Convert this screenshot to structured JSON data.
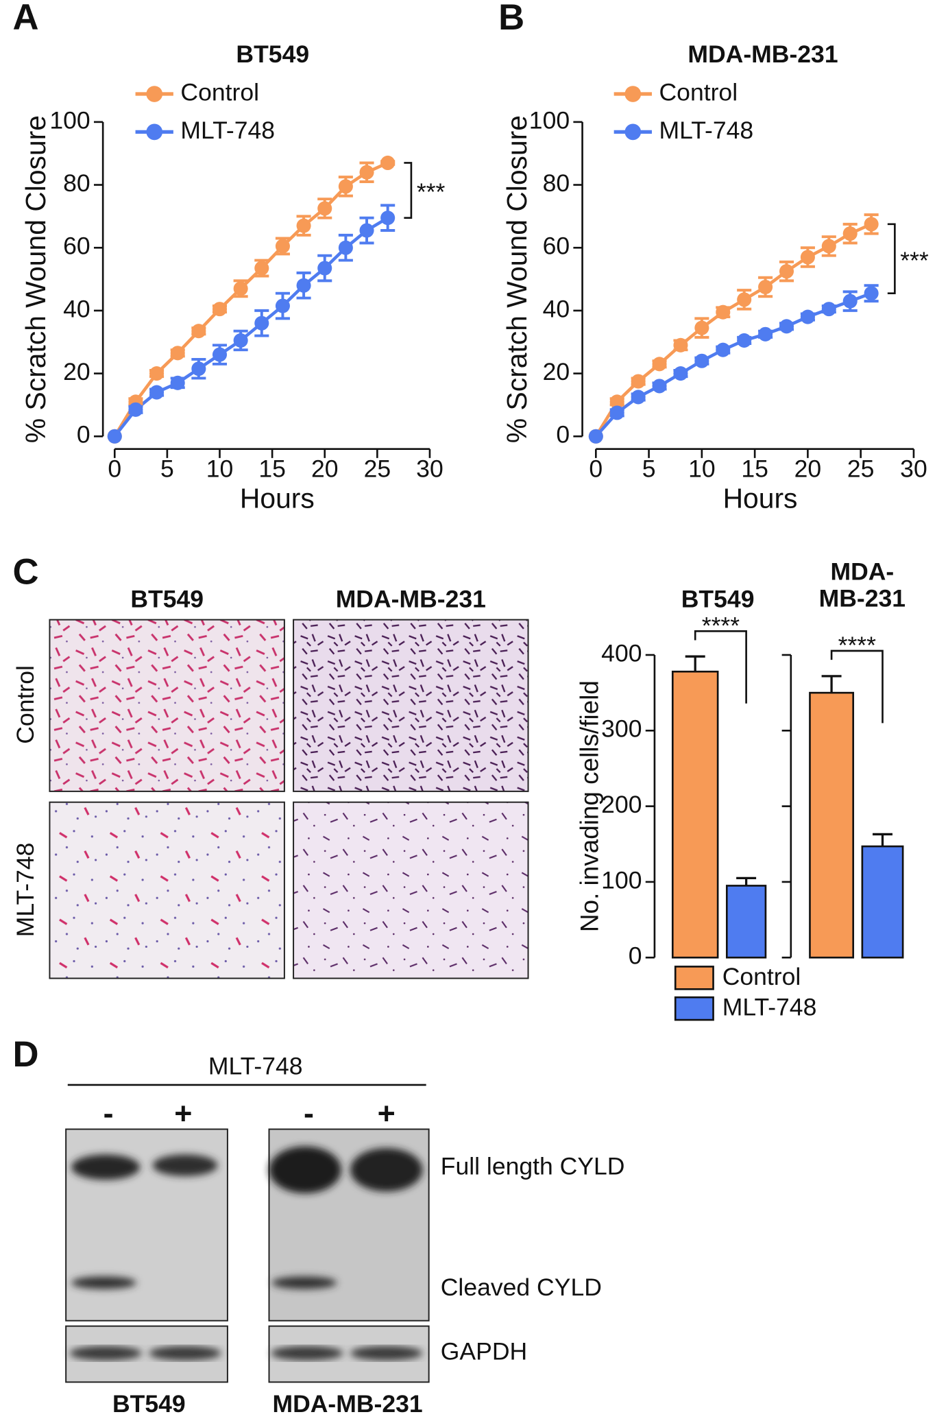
{
  "figure": {
    "panel_letters": [
      "A",
      "B",
      "C",
      "D"
    ],
    "micrographs": {
      "columns": [
        "BT549",
        "MDA-MB-231"
      ],
      "rows": [
        "Control",
        "MLT-748"
      ]
    },
    "western_blot": {
      "treatment": "MLT-748",
      "lanes": [
        "-",
        "+",
        "-",
        "+"
      ],
      "bands": [
        "Full length CYLD",
        "Cleaved CYLD",
        "GAPDH"
      ],
      "cell_lines": [
        "BT549",
        "MDA-MB-231"
      ]
    }
  },
  "chart_data": [
    {
      "type": "line",
      "title": "BT549",
      "x_label": "Hours",
      "y_label": "% Scratch Wound Closure",
      "x": [
        0,
        2,
        4,
        6,
        8,
        10,
        12,
        14,
        16,
        18,
        20,
        22,
        24,
        26
      ],
      "series": [
        {
          "name": "Control",
          "color": "#f79a56",
          "values": [
            0,
            11,
            20,
            26.5,
            33.5,
            40.5,
            47,
            53.5,
            60.5,
            67,
            72.5,
            79.5,
            84,
            87
          ],
          "errors": [
            0,
            1,
            1,
            1,
            1,
            1,
            2.5,
            2.5,
            2.5,
            3,
            3,
            3,
            3,
            0.5
          ]
        },
        {
          "name": "MLT-748",
          "color": "#4f7cf0",
          "values": [
            0,
            8.5,
            14,
            17,
            21.5,
            26,
            30.5,
            36,
            41.5,
            48,
            53.5,
            60,
            65.5,
            69.5
          ],
          "errors": [
            0,
            1,
            1,
            1.5,
            3,
            3,
            3,
            4,
            4,
            4,
            4,
            4,
            4,
            4
          ]
        }
      ],
      "xlim": [
        0,
        30
      ],
      "xticks": [
        0,
        5,
        10,
        15,
        20,
        25,
        30
      ],
      "ylim": [
        0,
        100
      ],
      "yticks": [
        0,
        20,
        40,
        60,
        80,
        100
      ],
      "annotation": "***"
    },
    {
      "type": "line",
      "title": "MDA-MB-231",
      "x_label": "Hours",
      "y_label": "% Scratch Wound Closure",
      "x": [
        0,
        2,
        4,
        6,
        8,
        10,
        12,
        14,
        16,
        18,
        20,
        22,
        24,
        26
      ],
      "series": [
        {
          "name": "Control",
          "color": "#f79a56",
          "values": [
            0,
            11,
            17.5,
            23,
            29,
            34.5,
            39.5,
            43.5,
            47.5,
            52.5,
            57,
            60.5,
            64.5,
            67.5
          ],
          "errors": [
            0,
            1,
            1,
            1,
            1.5,
            3,
            1.5,
            3,
            3,
            3,
            3,
            3,
            3,
            3
          ]
        },
        {
          "name": "MLT-748",
          "color": "#4f7cf0",
          "values": [
            0,
            7.5,
            12.5,
            16,
            20,
            24,
            27.5,
            30.5,
            32.5,
            35,
            38,
            40.5,
            43,
            45.5
          ],
          "errors": [
            0,
            1,
            1,
            1,
            1,
            1,
            1,
            1,
            1,
            1,
            1,
            1,
            3,
            2.5
          ]
        }
      ],
      "xlim": [
        0,
        30
      ],
      "xticks": [
        0,
        5,
        10,
        15,
        20,
        25,
        30
      ],
      "ylim": [
        0,
        100
      ],
      "yticks": [
        0,
        20,
        40,
        60,
        80,
        100
      ],
      "annotation": "***"
    },
    {
      "type": "bar",
      "title": "BT549",
      "y_label": "No. invading cells/field",
      "categories": [
        "Control",
        "MLT-748"
      ],
      "colors": [
        "#f79a56",
        "#4f7cf0"
      ],
      "values": [
        378,
        95
      ],
      "errors": [
        20,
        10
      ],
      "ylim": [
        0,
        400
      ],
      "yticks": [
        0,
        100,
        200,
        300,
        400
      ],
      "tick_labels": true,
      "legend": true,
      "annotation": "****"
    },
    {
      "type": "bar",
      "title": "MDA-\nMB-231",
      "categories": [
        "Control",
        "MLT-748"
      ],
      "colors": [
        "#f79a56",
        "#4f7cf0"
      ],
      "values": [
        350,
        147
      ],
      "errors": [
        22,
        16
      ],
      "ylim": [
        0,
        400
      ],
      "yticks": [
        0,
        100,
        200,
        300,
        400
      ],
      "tick_labels": false,
      "legend": false,
      "annotation": "****"
    }
  ]
}
